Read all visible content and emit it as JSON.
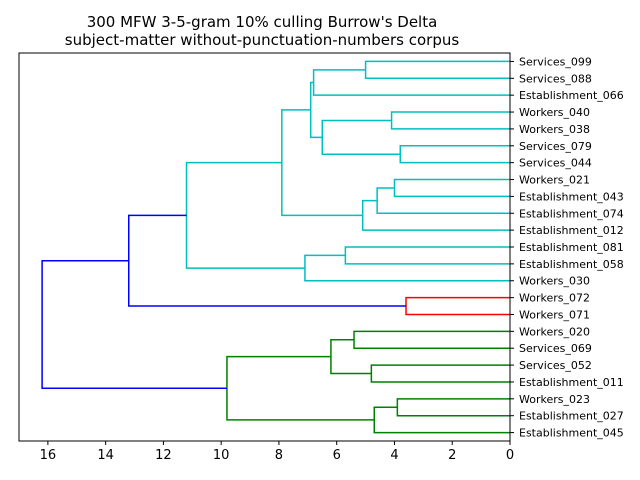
{
  "chart_data": {
    "type": "dendrogram",
    "title": [
      "300 MFW 3-5-gram 10% culling Burrow's Delta",
      "subject-matter without-punctuation-numbers corpus"
    ],
    "xlabel": "",
    "ylabel": "",
    "xlim": [
      17,
      0
    ],
    "xticks": [
      16,
      14,
      12,
      10,
      8,
      6,
      4,
      2,
      0
    ],
    "orientation": "leaves-right",
    "colors": {
      "cluster_a": "#00bfbf",
      "cluster_b": "#ff0000",
      "cluster_c": "#008000",
      "above_threshold": "#0000ff"
    },
    "leaves": [
      "Services_099",
      "Services_088",
      "Establishment_066",
      "Workers_040",
      "Workers_038",
      "Services_079",
      "Services_044",
      "Workers_021",
      "Establishment_043",
      "Establishment_074",
      "Establishment_012",
      "Establishment_081",
      "Establishment_058",
      "Workers_030",
      "Workers_072",
      "Workers_071",
      "Workers_020",
      "Services_069",
      "Services_052",
      "Establishment_011",
      "Workers_023",
      "Establishment_027",
      "Establishment_045"
    ],
    "merges": [
      {
        "a": "L0",
        "b": "L1",
        "height": 5.0,
        "color": "cluster_a"
      },
      {
        "a": "L3",
        "b": "L4",
        "height": 4.1,
        "color": "cluster_a"
      },
      {
        "a": "L5",
        "b": "L6",
        "height": 3.8,
        "color": "cluster_a"
      },
      {
        "a": "L7",
        "b": "L8",
        "height": 4.0,
        "color": "cluster_a"
      },
      {
        "a": "L11",
        "b": "L12",
        "height": 5.7,
        "color": "cluster_a"
      },
      {
        "a": "L14",
        "b": "L15",
        "height": 3.6,
        "color": "cluster_b"
      },
      {
        "a": "L16",
        "b": "L17",
        "height": 5.4,
        "color": "cluster_c"
      },
      {
        "a": "L18",
        "b": "L19",
        "height": 4.8,
        "color": "cluster_c"
      },
      {
        "a": "L20",
        "b": "L21",
        "height": 3.9,
        "color": "cluster_c"
      },
      {
        "a": "M0",
        "b": "L2",
        "height": 6.8,
        "color": "cluster_a"
      },
      {
        "a": "M1",
        "b": "M2",
        "height": 6.5,
        "color": "cluster_a"
      },
      {
        "a": "M9",
        "b": "M10",
        "height": 6.9,
        "color": "cluster_a"
      },
      {
        "a": "M3",
        "b": "L9",
        "height": 4.6,
        "color": "cluster_a"
      },
      {
        "a": "M12",
        "b": "L10",
        "height": 5.1,
        "color": "cluster_a"
      },
      {
        "a": "M11",
        "b": "M13",
        "height": 7.9,
        "color": "cluster_a"
      },
      {
        "a": "M4",
        "b": "L13",
        "height": 7.1,
        "color": "cluster_a"
      },
      {
        "a": "M14",
        "b": "M15",
        "height": 11.2,
        "color": "cluster_a"
      },
      {
        "a": "M16",
        "b": "M5",
        "height": 13.2,
        "color": "above_threshold"
      },
      {
        "a": "M6",
        "b": "M7",
        "height": 6.2,
        "color": "cluster_c"
      },
      {
        "a": "M8",
        "b": "L22",
        "height": 4.7,
        "color": "cluster_c"
      },
      {
        "a": "M18",
        "b": "M19",
        "height": 9.8,
        "color": "cluster_c"
      },
      {
        "a": "M17",
        "b": "M20",
        "height": 16.2,
        "color": "above_threshold"
      }
    ]
  }
}
